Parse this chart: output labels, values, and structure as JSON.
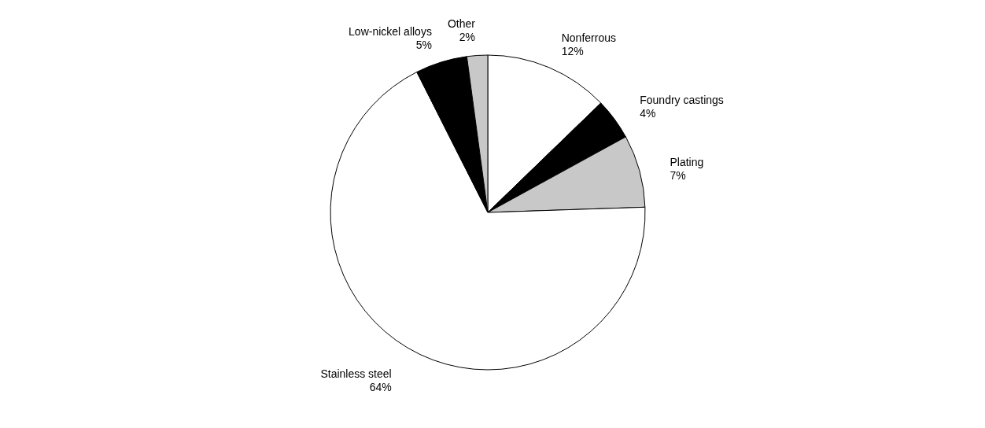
{
  "chart_data": {
    "type": "pie",
    "categories": [
      "Nonferrous",
      "Foundry castings",
      "Plating",
      "Stainless steel",
      "Low-nickel alloys",
      "Other"
    ],
    "values": [
      12,
      4,
      7,
      64,
      5,
      2
    ],
    "value_labels": [
      "12%",
      "4%",
      "7%",
      "64%",
      "5%",
      "2%"
    ],
    "colors": [
      "#ffffff",
      "#000000",
      "#c8c8c8",
      "#ffffff",
      "#000000",
      "#c8c8c8"
    ]
  }
}
